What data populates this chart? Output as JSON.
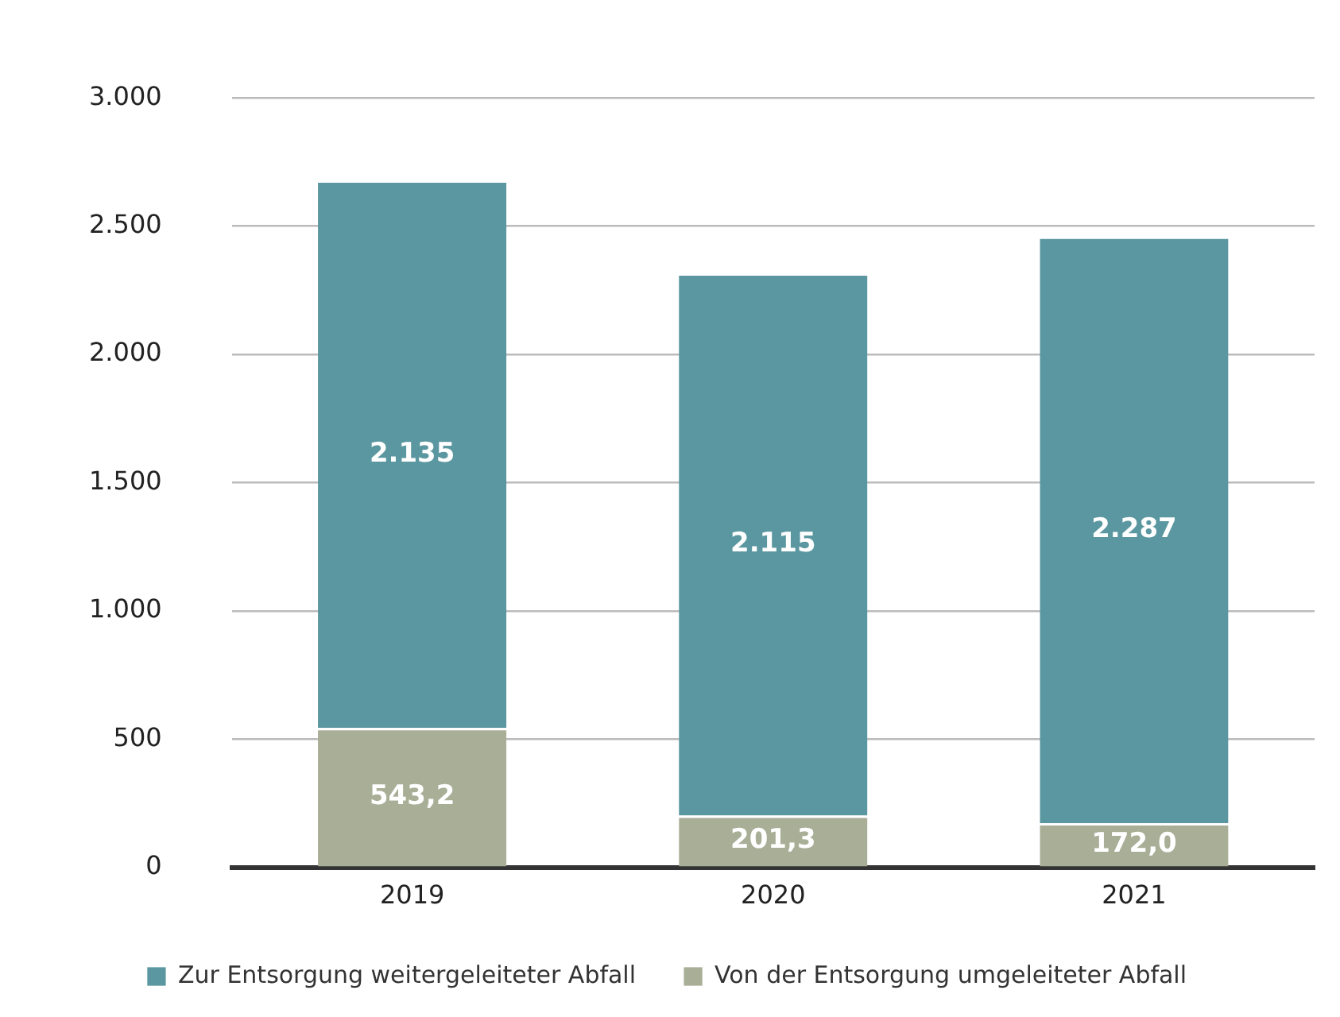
{
  "chart_data": {
    "type": "bar",
    "stacked": true,
    "categories": [
      "2019",
      "2020",
      "2021"
    ],
    "series": [
      {
        "name": "Von der Entsorgung umgeleiteter Abfall",
        "color": "#a9ae97",
        "values": [
          543.2,
          201.3,
          172.0
        ],
        "value_labels": [
          "543,2",
          "201,3",
          "172,0"
        ]
      },
      {
        "name": "Zur Entsorgung weitergeleiteter Abfall",
        "color": "#5b97a0",
        "values": [
          2135,
          2115,
          2287
        ],
        "value_labels": [
          "2.135",
          "2.115",
          "2.287"
        ]
      }
    ],
    "ylim": [
      0,
      3000
    ],
    "yticks": [
      0,
      {
        "value": 500,
        "label": "500"
      },
      {
        "value": 1000,
        "label": "1.000"
      },
      {
        "value": 1500,
        "label": "1.500"
      },
      {
        "value": 2000,
        "label": "2.000"
      },
      {
        "value": 2500,
        "label": "2.500"
      },
      {
        "value": 3000,
        "label": "3.000"
      }
    ],
    "grid": "y",
    "legend": "bottom"
  }
}
